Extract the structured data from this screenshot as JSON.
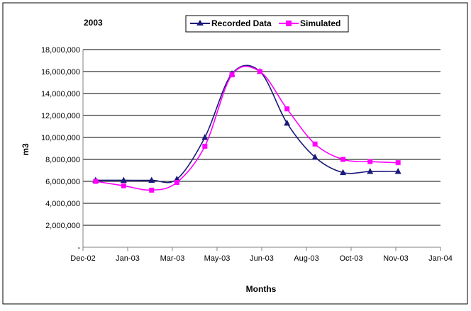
{
  "chart_data": {
    "type": "line",
    "title": "2003",
    "xlabel": "Months",
    "ylabel": "m3",
    "x_ticks": [
      "Dec-02",
      "Jan-03",
      "Mar-03",
      "May-03",
      "Jun-03",
      "Aug-03",
      "Oct-03",
      "Nov-03",
      "Jan-04"
    ],
    "y_ticks": [
      "-",
      "2,000,000",
      "4,000,000",
      "6,000,000",
      "8,000,000",
      "10,000,000",
      "12,000,000",
      "14,000,000",
      "16,000,000",
      "18,000,000"
    ],
    "xlim": [
      "2002-12-01",
      "2004-01-01"
    ],
    "ylim": [
      0,
      18000000
    ],
    "grid": "horizontal",
    "legend_position": "top",
    "series": [
      {
        "name": "Recorded Data",
        "color": "#1a1a7a",
        "marker": "triangle",
        "x": [
          "2002-12-15",
          "2003-01-15",
          "2003-02-15",
          "2003-03-15",
          "2003-04-15",
          "2003-05-15",
          "2003-06-15",
          "2003-07-15",
          "2003-08-15",
          "2003-09-15",
          "2003-10-15",
          "2003-11-15"
        ],
        "values": [
          6100000,
          6100000,
          6100000,
          6200000,
          10000000,
          15800000,
          16000000,
          11300000,
          8200000,
          6800000,
          6900000,
          6900000
        ]
      },
      {
        "name": "Simulated",
        "color": "#ff00ff",
        "marker": "square",
        "x": [
          "2002-12-15",
          "2003-01-15",
          "2003-02-15",
          "2003-03-15",
          "2003-04-15",
          "2003-05-15",
          "2003-06-15",
          "2003-07-15",
          "2003-08-15",
          "2003-09-15",
          "2003-10-15",
          "2003-11-15"
        ],
        "values": [
          6000000,
          5600000,
          5200000,
          5900000,
          9200000,
          15700000,
          16000000,
          12600000,
          9400000,
          8000000,
          7800000,
          7700000
        ]
      }
    ]
  }
}
